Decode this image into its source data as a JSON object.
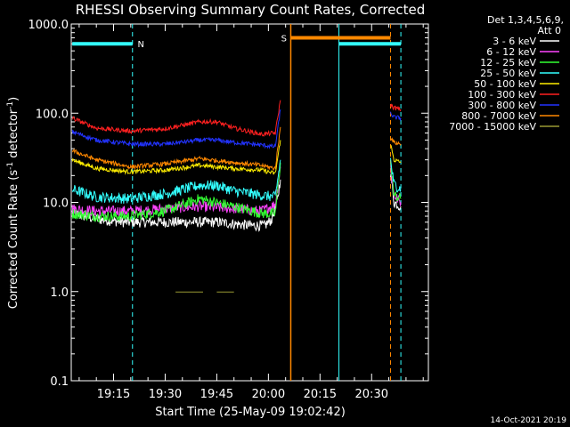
{
  "chart_data": {
    "type": "line",
    "title": "RHESSI Observing Summary Count Rates, Corrected",
    "xlabel": "Start Time (25-May-09 19:02:42)",
    "ylabel_main": "Corrected Count Rate (s",
    "ylabel_sup1": "-1",
    "ylabel_mid": " detector",
    "ylabel_sup2": "-1",
    "ylabel_end": ")",
    "yscale": "log",
    "ylim": [
      0.1,
      1000
    ],
    "xlim_min": [
      2.7,
      106.5
    ],
    "y_ticks": [
      {
        "value": 1000,
        "label": "1000.0"
      },
      {
        "value": 100,
        "label": "100.0"
      },
      {
        "value": 10,
        "label": "10.0"
      },
      {
        "value": 1,
        "label": "1.0"
      },
      {
        "value": 0.1,
        "label": "0.1"
      }
    ],
    "x_ticks": [
      {
        "value": 15,
        "label": "19:15"
      },
      {
        "value": 30,
        "label": "19:30"
      },
      {
        "value": 45,
        "label": "19:45"
      },
      {
        "value": 60,
        "label": "20:00"
      },
      {
        "value": 75,
        "label": "20:15"
      },
      {
        "value": 90,
        "label": "20:30"
      }
    ],
    "legend_title": "Det 1,3,4,5,6,9,",
    "legend_subtitle": "Att 0",
    "legend_placement": "top-right, outside plot",
    "footer": "14-Oct-2021 20:19",
    "series": [
      {
        "name": "3 - 6 keV",
        "color": "#ffffff",
        "segments": [
          {
            "t": [
              3,
              10,
              18,
              25,
              35,
              45,
              55,
              59,
              61,
              62.5,
              63.5
            ],
            "v": [
              7.5,
              6.5,
              6.0,
              6.0,
              6.0,
              6.0,
              5.5,
              5.5,
              6.5,
              10,
              18
            ]
          },
          {
            "t": [
              95.5,
              96.5,
              98.5
            ],
            "v": [
              22,
              10,
              9
            ]
          }
        ]
      },
      {
        "name": "6 - 12 keV",
        "color": "#ff44ff",
        "segments": [
          {
            "t": [
              3,
              10,
              20,
              30,
              40,
              50,
              58,
              62,
              63.5
            ],
            "v": [
              8.5,
              8.0,
              8.0,
              8.5,
              9.0,
              8.5,
              8.0,
              9.5,
              25
            ]
          },
          {
            "t": [
              95.5,
              96.5,
              98.5
            ],
            "v": [
              25,
              12,
              10
            ]
          }
        ]
      },
      {
        "name": "12 - 25 keV",
        "color": "#33ff33",
        "segments": [
          {
            "t": [
              3,
              10,
              20,
              30,
              40,
              50,
              58,
              62,
              63.5
            ],
            "v": [
              7.5,
              7.0,
              7.0,
              8.0,
              11,
              9.0,
              7.5,
              7.5,
              28
            ]
          },
          {
            "t": [
              95.5,
              96.5,
              98.5
            ],
            "v": [
              28,
              12,
              11
            ]
          }
        ]
      },
      {
        "name": "25 - 50 keV",
        "color": "#33ffff",
        "segments": [
          {
            "t": [
              3,
              10,
              20,
              30,
              40,
              45,
              50,
              58,
              62,
              63.5
            ],
            "v": [
              14,
              11.5,
              11,
              12.5,
              15.5,
              15.5,
              13.5,
              12,
              11.5,
              30
            ]
          },
          {
            "t": [
              95.5,
              96.5,
              98.5
            ],
            "v": [
              30,
              16,
              14
            ]
          }
        ]
      },
      {
        "name": "50 - 100 keV",
        "color": "#ffee00",
        "segments": [
          {
            "t": [
              3,
              10,
              20,
              30,
              40,
              50,
              58,
              62,
              63.5
            ],
            "v": [
              30,
              24,
              22,
              23,
              26,
              24,
              23,
              21,
              50
            ]
          },
          {
            "t": [
              95.5,
              96.5,
              98.5
            ],
            "v": [
              45,
              30,
              28
            ]
          }
        ]
      },
      {
        "name": "100 - 300 keV",
        "color": "#ff2020",
        "segments": [
          {
            "t": [
              3,
              10,
              20,
              30,
              40,
              45,
              50,
              58,
              62,
              63.5
            ],
            "v": [
              88,
              68,
              63,
              67,
              80,
              80,
              68,
              58,
              60,
              140
            ]
          },
          {
            "t": [
              95.5,
              96.5,
              98.5
            ],
            "v": [
              125,
              115,
              110
            ]
          }
        ]
      },
      {
        "name": "300 - 800 keV",
        "color": "#2233ff",
        "segments": [
          {
            "t": [
              3,
              10,
              20,
              30,
              40,
              45,
              50,
              58,
              62,
              63.5
            ],
            "v": [
              62,
              50,
              45,
              45,
              50,
              50,
              47,
              44,
              42,
              110
            ]
          },
          {
            "t": [
              95.5,
              96.5,
              98.5
            ],
            "v": [
              100,
              90,
              88
            ]
          }
        ]
      },
      {
        "name": "800 - 7000 keV",
        "color": "#ff8800",
        "segments": [
          {
            "t": [
              3,
              10,
              20,
              30,
              40,
              50,
              58,
              62,
              63.5
            ],
            "v": [
              38,
              30,
              25,
              27,
              31,
              28,
              26,
              24,
              70
            ]
          },
          {
            "t": [
              95.5,
              96.5,
              98.5
            ],
            "v": [
              55,
              47,
              45
            ]
          }
        ]
      },
      {
        "name": "7000 - 15000 keV",
        "color": "#999933",
        "segments": [
          {
            "t": [
              33,
              41
            ],
            "v": [
              0.99,
              0.99
            ]
          },
          {
            "t": [
              45,
              50
            ],
            "v": [
              0.99,
              0.99
            ]
          }
        ]
      }
    ],
    "markers": {
      "cyan_bars": [
        {
          "t0": 3,
          "t1": 20.5,
          "v": 600,
          "label": "N",
          "label_t": 22
        },
        {
          "t0": 80.5,
          "t1": 98.5,
          "v": 600,
          "label": "",
          "label_t": 0
        }
      ],
      "orange_bar": {
        "t0": 66.5,
        "t1": 95.5,
        "v": 700,
        "label": "S",
        "label_t": 64.5
      },
      "cyan_dashed_t": [
        20.5,
        98.5
      ],
      "cyan_solid_t": [
        80.5
      ],
      "orange_solid_t": [
        66.5
      ],
      "orange_dashed_t": [
        95.5
      ]
    }
  }
}
